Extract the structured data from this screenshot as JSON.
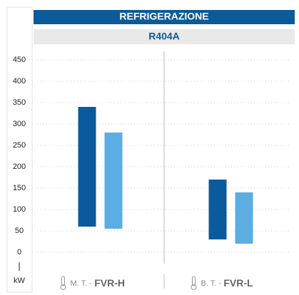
{
  "chart_data": {
    "type": "floating-bar",
    "title": "REFRIGERAZIONE",
    "subtitle": "R404A",
    "y_label": "kW",
    "categories": [
      "FVR-H",
      "FVR-L"
    ],
    "category_prefixes": [
      "M. T. -",
      "B. T. -"
    ],
    "series": [
      {
        "color": "#0b5a9c",
        "values": [
          [
            60,
            340
          ],
          [
            30,
            170
          ]
        ]
      },
      {
        "color": "#5aaee3",
        "values": [
          [
            55,
            280
          ],
          [
            20,
            140
          ]
        ]
      }
    ],
    "ylim": [
      -25,
      475
    ],
    "yticks": [
      0,
      50,
      100,
      150,
      200,
      250,
      300,
      350,
      400,
      450
    ],
    "grid": true
  }
}
